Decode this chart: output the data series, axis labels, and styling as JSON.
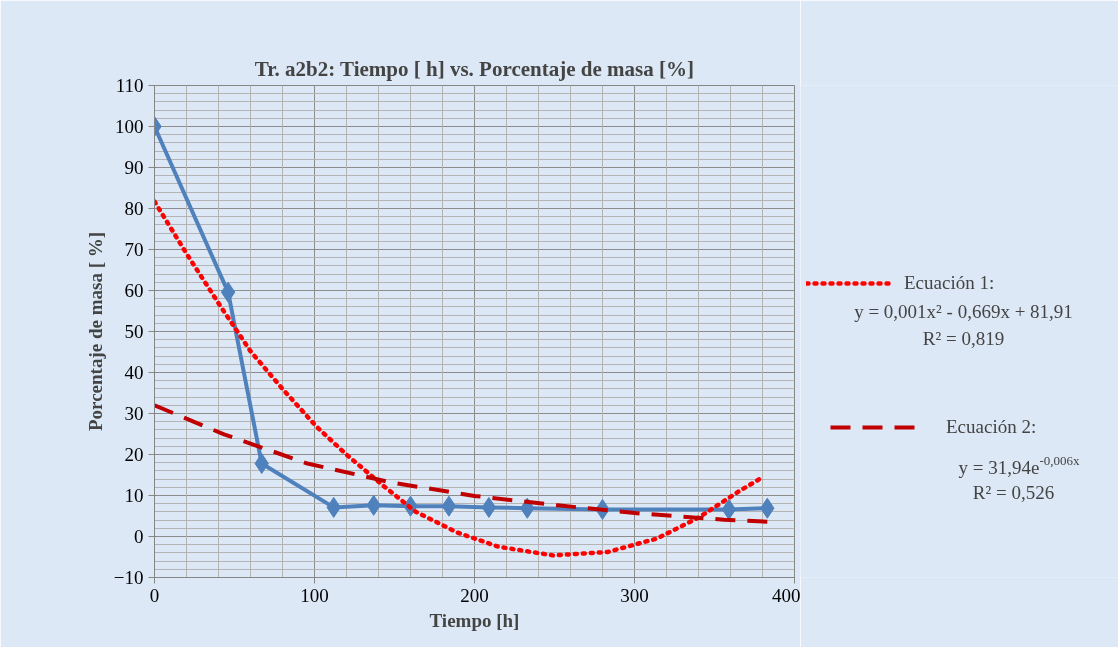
{
  "chart_data": {
    "type": "line",
    "title": "Tr. a2b2: Tiempo [ h] vs. Porcentaje de masa [%]",
    "xlabel": "Tiempo [h]",
    "ylabel": "Porcentaje de masa [ %]",
    "xlim": [
      0,
      400
    ],
    "xticks": [
      0,
      100,
      200,
      300,
      400
    ],
    "ylim": [
      -10,
      110
    ],
    "yticks": [
      -10,
      0,
      10,
      20,
      30,
      40,
      50,
      60,
      70,
      80,
      90,
      100,
      110
    ],
    "grid": true,
    "legend": "right",
    "series": [
      {
        "color": "#4f81bd",
        "marker": "diamond",
        "line_style": "solid",
        "x": [
          0,
          46,
          67,
          112,
          137,
          160,
          184,
          209,
          233,
          280,
          359,
          383
        ],
        "values": [
          100,
          59.6,
          17.8,
          7.1,
          7.6,
          7.4,
          7.4,
          7.1,
          6.9,
          6.6,
          6.6,
          6.9
        ]
      },
      {
        "name": "Ecuación 1:",
        "color": "#ff0000",
        "marker": "none",
        "line_style": "dotted",
        "x": [
          0,
          20,
          41,
          60,
          80,
          101,
          119,
          142,
          163,
          189,
          215,
          249,
          283,
          314,
          340,
          366,
          379
        ],
        "values": [
          81.7,
          69,
          56.3,
          45.2,
          36,
          26.9,
          20.3,
          12.7,
          6.1,
          1,
          -2.5,
          -4.6,
          -3.8,
          -0.5,
          4.6,
          11.2,
          14.2
        ]
      },
      {
        "name": "Ecuación 2:",
        "color": "#c00000",
        "marker": "none",
        "line_style": "dashed",
        "x": [
          0,
          43.5,
          95.6,
          147.7,
          200,
          252,
          304,
          356,
          383
        ],
        "values": [
          32,
          24.9,
          17.8,
          13.2,
          9.9,
          7.6,
          5.6,
          4.1,
          3.6
        ]
      }
    ],
    "annotations": [
      "y = 0,001x² - 0,669x + 81,91",
      "R² = 0,819",
      "y = 31,94e$^{-0,006x}$",
      "R² = 0,526"
    ]
  }
}
